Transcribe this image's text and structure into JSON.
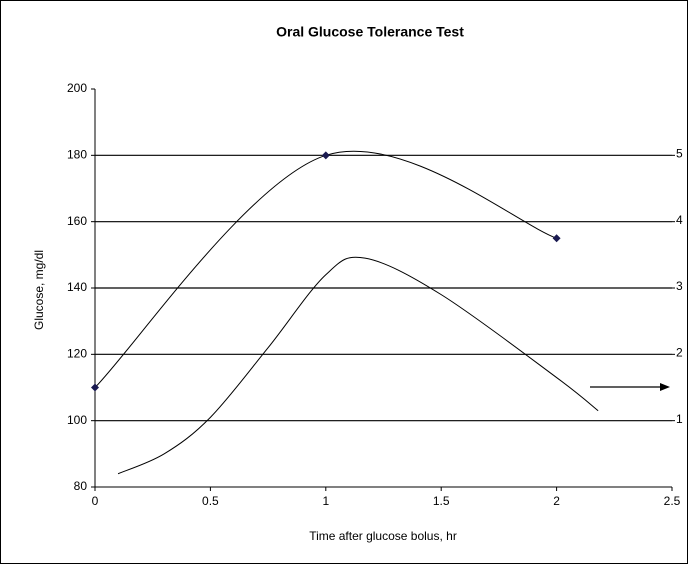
{
  "chart_data": {
    "type": "line",
    "title": "Oral Glucose Tolerance Test",
    "x_label": "Time after glucose bolus, hr",
    "y_label": "Glucose, mg/dl",
    "xlim": [
      0,
      2.5
    ],
    "xticks": [
      0,
      0.5,
      1,
      1.5,
      2,
      2.5
    ],
    "ylim": [
      80,
      200
    ],
    "yticks": [
      80,
      100,
      120,
      140,
      160,
      180,
      200
    ],
    "y2lim": [
      0,
      6
    ],
    "y2ticks": [
      1,
      2,
      3,
      4,
      5
    ],
    "grid": true,
    "series": [
      {
        "color": "#1a1a50",
        "x": [
          0,
          1,
          2
        ],
        "values": [
          110,
          180,
          155
        ],
        "markers": true
      },
      {
        "color": "#000000",
        "axis": "y2",
        "x": [
          0.1,
          0.3,
          0.5,
          0.75,
          1.0,
          1.17,
          1.5,
          2.0,
          2.18
        ],
        "values": [
          0.2,
          0.5,
          1.05,
          2.1,
          3.2,
          3.45,
          2.9,
          1.65,
          1.15
        ],
        "markers": false
      }
    ]
  }
}
